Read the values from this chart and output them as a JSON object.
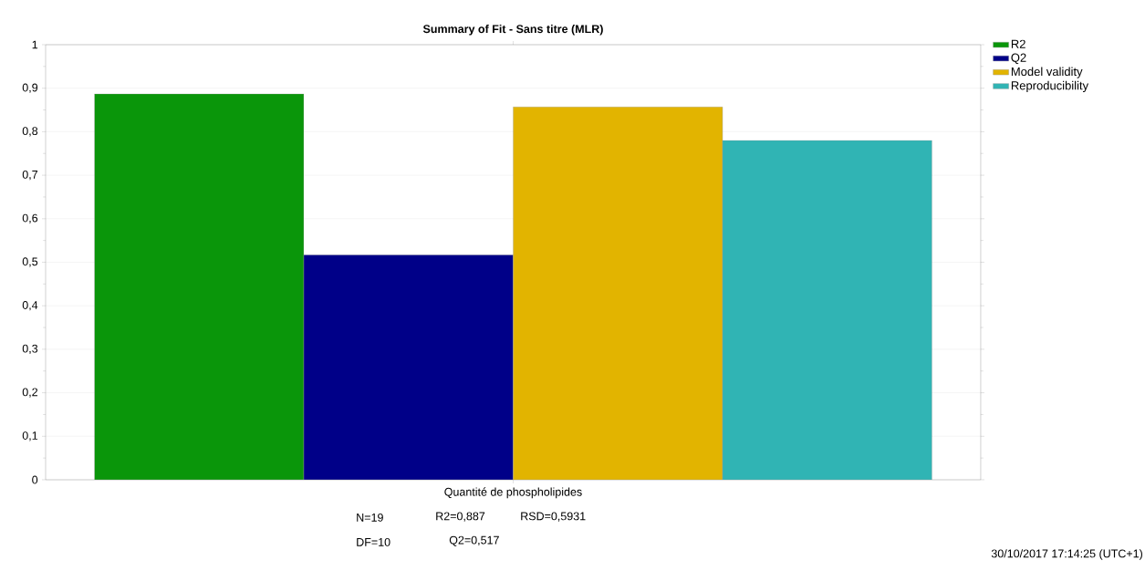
{
  "chart_data": {
    "type": "bar",
    "title": "Summary of Fit - Sans titre (MLR)",
    "categories": [
      "Quantité de phospholipides"
    ],
    "series": [
      {
        "name": "R2",
        "color": "#0a960a",
        "values": [
          0.887
        ]
      },
      {
        "name": "Q2",
        "color": "#000088",
        "values": [
          0.517
        ]
      },
      {
        "name": "Model validity",
        "color": "#e2b400",
        "values": [
          0.857
        ]
      },
      {
        "name": "Reproducibility",
        "color": "#30b4b4",
        "values": [
          0.78
        ]
      }
    ],
    "ylim": [
      0,
      1
    ],
    "yticks": [
      0,
      {
        "value": 0.1,
        "label": "0,1"
      },
      {
        "value": 0.2,
        "label": "0,2"
      },
      {
        "value": 0.3,
        "label": "0,3"
      },
      {
        "value": 0.4,
        "label": "0,4"
      },
      {
        "value": 0.5,
        "label": "0,5"
      },
      {
        "value": 0.6,
        "label": "0,6"
      },
      {
        "value": 0.7,
        "label": "0,7"
      },
      {
        "value": 0.8,
        "label": "0,8"
      },
      {
        "value": 0.9,
        "label": "0,9"
      },
      1
    ],
    "grid": "y",
    "legend": "top right",
    "annotations": [
      "N=19",
      "R2=0,887",
      "RSD=0,5931",
      "DF=10",
      "Q2=0,517",
      "30/10/2017 17:14:25 (UTC+1)"
    ]
  }
}
